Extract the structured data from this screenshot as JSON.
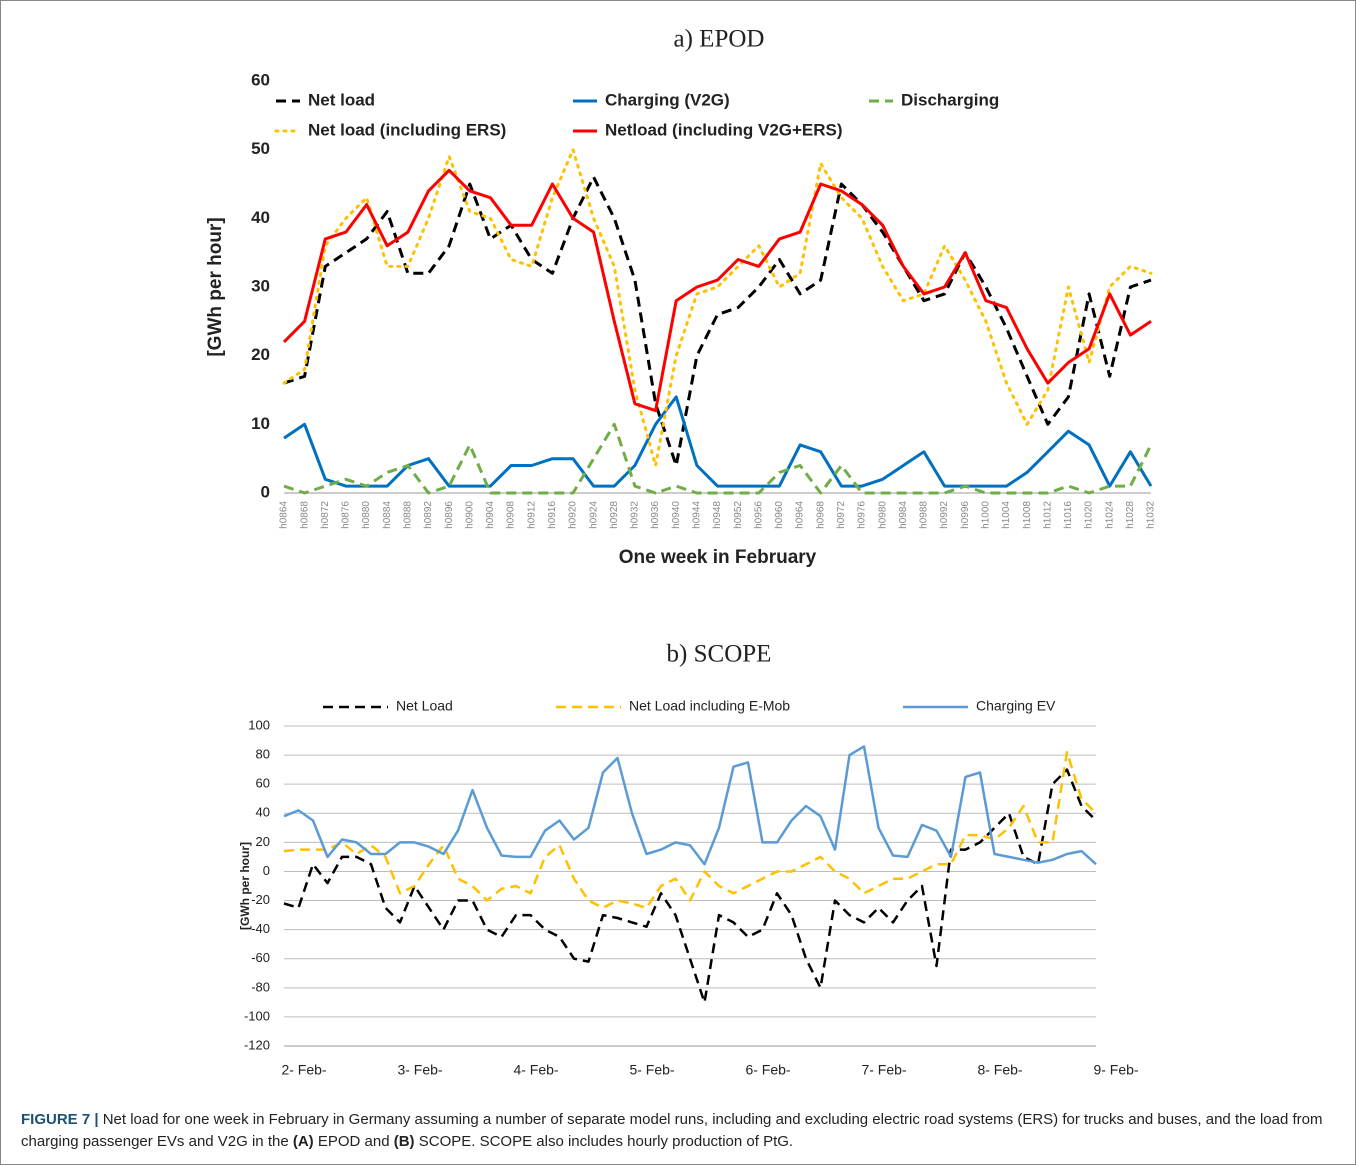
{
  "chart_data": [
    {
      "type": "line",
      "title": "a) EPOD",
      "ylabel": "[GWh per hour]",
      "xlabel": "One week in February",
      "categories": [
        "h0864",
        "h0868",
        "h0872",
        "h0876",
        "h0880",
        "h0884",
        "h0888",
        "h0892",
        "h0896",
        "h0900",
        "h0904",
        "h0908",
        "h0912",
        "h0916",
        "h0920",
        "h0924",
        "h0928",
        "h0932",
        "h0936",
        "h0940",
        "h0944",
        "h0948",
        "h0952",
        "h0956",
        "h0960",
        "h0964",
        "h0968",
        "h0972",
        "h0976",
        "h0980",
        "h0984",
        "h0988",
        "h0992",
        "h0996",
        "h1000",
        "h1004",
        "h1008",
        "h1012",
        "h1016",
        "h1020",
        "h1024",
        "h1028",
        "h1032"
      ],
      "ylim": [
        0,
        60
      ],
      "yticks": [
        0,
        10,
        20,
        30,
        40,
        50,
        60
      ],
      "grid": false,
      "legend": "top",
      "series": [
        {
          "name": "Net load",
          "color": "#000000",
          "dash": "dashed",
          "values": [
            16,
            17,
            33,
            35,
            37,
            41,
            32,
            32,
            36,
            45,
            37,
            39,
            34,
            32,
            40,
            46,
            40,
            31,
            13,
            4,
            20,
            26,
            27,
            30,
            34,
            29,
            31,
            45,
            42,
            38,
            33,
            28,
            29,
            35,
            30,
            24,
            17,
            10,
            14,
            29,
            17,
            30,
            31
          ]
        },
        {
          "name": "Charging (V2G)",
          "color": "#0070c0",
          "dash": "solid",
          "values": [
            8,
            10,
            2,
            1,
            1,
            1,
            4,
            5,
            1,
            1,
            1,
            4,
            4,
            5,
            5,
            1,
            1,
            4,
            10,
            14,
            4,
            1,
            1,
            1,
            1,
            7,
            6,
            1,
            1,
            2,
            4,
            6,
            1,
            1,
            1,
            1,
            3,
            6,
            9,
            7,
            1,
            6,
            1
          ]
        },
        {
          "name": "Discharging",
          "color": "#70ad47",
          "dash": "dashed",
          "values": [
            1,
            0,
            1,
            2,
            1,
            3,
            4,
            0,
            1,
            7,
            0,
            0,
            0,
            0,
            0,
            5,
            10,
            1,
            0,
            1,
            0,
            0,
            0,
            0,
            3,
            4,
            0,
            4,
            0,
            0,
            0,
            0,
            0,
            1,
            0,
            0,
            0,
            0,
            1,
            0,
            1,
            1,
            7
          ]
        },
        {
          "name": "Net load (including ERS)",
          "color": "#ffc000",
          "dash": "dotted",
          "values": [
            16,
            18,
            36,
            40,
            43,
            33,
            33,
            40,
            49,
            41,
            40,
            34,
            33,
            43,
            50,
            40,
            33,
            15,
            4,
            20,
            29,
            30,
            33,
            36,
            30,
            32,
            48,
            43,
            40,
            33,
            28,
            29,
            36,
            31,
            25,
            16,
            10,
            15,
            30,
            19,
            30,
            33,
            32
          ]
        },
        {
          "name": "Netload (including V2G+ERS)",
          "color": "#ff0000",
          "dash": "solid",
          "values": [
            22,
            25,
            37,
            38,
            42,
            36,
            38,
            44,
            47,
            44,
            43,
            39,
            39,
            45,
            40,
            38,
            25,
            13,
            12,
            28,
            30,
            31,
            34,
            33,
            37,
            38,
            45,
            44,
            42,
            39,
            33,
            29,
            30,
            35,
            28,
            27,
            21,
            16,
            19,
            21,
            29,
            23,
            25
          ]
        }
      ]
    },
    {
      "type": "line",
      "title": "b) SCOPE",
      "ylabel": "[GWh per hour]",
      "categories": [
        "2- Feb-",
        null,
        null,
        null,
        null,
        null,
        null,
        null,
        "3- Feb-",
        null,
        null,
        null,
        null,
        null,
        null,
        null,
        "4- Feb-",
        null,
        null,
        null,
        null,
        null,
        null,
        null,
        "5- Feb-",
        null,
        null,
        null,
        null,
        null,
        null,
        null,
        "6- Feb-",
        null,
        null,
        null,
        null,
        null,
        null,
        null,
        "7- Feb-",
        null,
        null,
        null,
        null,
        null,
        null,
        null,
        "8- Feb-",
        null,
        null,
        null,
        null,
        null,
        null,
        null,
        "9- Feb-"
      ],
      "ylim": [
        -120,
        100
      ],
      "yticks": [
        -120,
        -100,
        -80,
        -60,
        -40,
        -20,
        0,
        20,
        40,
        60,
        80,
        100
      ],
      "grid": true,
      "legend": "top",
      "series": [
        {
          "name": "Net Load",
          "color": "#000000",
          "dash": "dashed",
          "values": [
            -22,
            -25,
            5,
            -8,
            10,
            10,
            5,
            -25,
            -35,
            -10,
            -25,
            -40,
            -20,
            -20,
            -40,
            -45,
            -30,
            -30,
            -40,
            -45,
            -60,
            -62,
            -30,
            -32,
            -35,
            -38,
            -15,
            -30,
            -60,
            -90,
            -30,
            -35,
            -45,
            -40,
            -15,
            -30,
            -60,
            -80,
            -20,
            -30,
            -35,
            -25,
            -35,
            -20,
            -10,
            -65,
            15,
            15,
            20,
            30,
            40,
            10,
            5,
            60,
            70,
            45,
            35
          ]
        },
        {
          "name": "Net Load including E-Mob",
          "color": "#ffc000",
          "dash": "dashed",
          "values": [
            14,
            15,
            15,
            15,
            20,
            12,
            18,
            10,
            -15,
            -10,
            5,
            18,
            -5,
            -10,
            -20,
            -12,
            -10,
            -15,
            10,
            18,
            -5,
            -20,
            -25,
            -20,
            -22,
            -25,
            -10,
            -5,
            -20,
            0,
            -10,
            -15,
            -10,
            -5,
            0,
            0,
            5,
            10,
            0,
            -5,
            -15,
            -10,
            -5,
            -5,
            0,
            5,
            5,
            25,
            25,
            22,
            30,
            45,
            20,
            20,
            82,
            50,
            40
          ]
        },
        {
          "name": "Charging EV",
          "color": "#5b9bd5",
          "dash": "solid",
          "values": [
            38,
            42,
            35,
            10,
            22,
            20,
            12,
            12,
            20,
            20,
            17,
            12,
            28,
            56,
            30,
            11,
            10,
            10,
            28,
            35,
            22,
            30,
            68,
            78,
            40,
            12,
            15,
            20,
            18,
            5,
            30,
            72,
            75,
            20,
            20,
            35,
            45,
            38,
            15,
            80,
            86,
            30,
            11,
            10,
            32,
            28,
            10,
            65,
            68,
            12,
            10,
            8,
            6,
            8,
            12,
            14,
            5
          ]
        }
      ]
    }
  ],
  "caption": {
    "label": "FIGURE 7 |",
    "text_1": "Net load for one week in February in Germany assuming a number of separate model runs, including and excluding electric road systems (ERS) for trucks and buses, and the load from charging passenger EVs and V2G in the",
    "ref_a": "(A)",
    "text_2": "EPOD and",
    "ref_b": "(B)",
    "text_3": "SCOPE. SCOPE also includes hourly production of PtG."
  }
}
